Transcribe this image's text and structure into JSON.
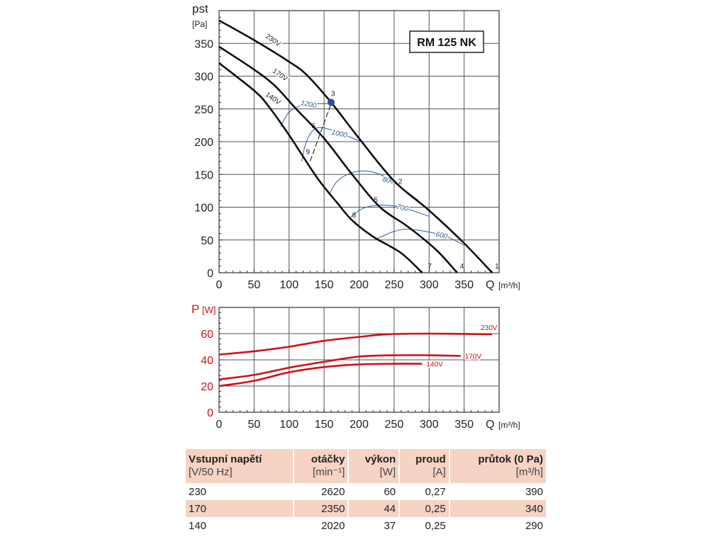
{
  "chart_data": [
    {
      "type": "line",
      "title": "RM 125 NK",
      "ylabel_main": "pst",
      "ylabel_unit": "[Pa]",
      "xlabel": "Q",
      "xlabel_unit": "[m³/h]",
      "xlim": [
        0,
        400
      ],
      "ylim": [
        0,
        400
      ],
      "xticks": [
        0,
        50,
        100,
        150,
        200,
        250,
        300,
        350
      ],
      "yticks": [
        0,
        50,
        100,
        150,
        200,
        250,
        300,
        350
      ],
      "series": [
        {
          "name": "230V",
          "points": [
            [
              0,
              385
            ],
            [
              50,
              355
            ],
            [
              100,
              322
            ],
            [
              125,
              302
            ],
            [
              160,
              260
            ],
            [
              200,
              205
            ],
            [
              250,
              140
            ],
            [
              300,
              95
            ],
            [
              350,
              45
            ],
            [
              390,
              0
            ]
          ]
        },
        {
          "name": "170V",
          "points": [
            [
              0,
              345
            ],
            [
              50,
              310
            ],
            [
              80,
              285
            ],
            [
              110,
              250
            ],
            [
              150,
              205
            ],
            [
              190,
              150
            ],
            [
              230,
              100
            ],
            [
              270,
              70
            ],
            [
              310,
              35
            ],
            [
              340,
              0
            ]
          ]
        },
        {
          "name": "140V",
          "points": [
            [
              0,
              320
            ],
            [
              50,
              278
            ],
            [
              70,
              255
            ],
            [
              100,
              210
            ],
            [
              140,
              145
            ],
            [
              170,
              105
            ],
            [
              190,
              80
            ],
            [
              220,
              55
            ],
            [
              260,
              30
            ],
            [
              290,
              0
            ]
          ]
        }
      ],
      "iso_curves": [
        {
          "label": "1200",
          "points": [
            [
              88,
              223
            ],
            [
              100,
              245
            ],
            [
              120,
              256
            ],
            [
              145,
              258
            ],
            [
              160,
              258
            ]
          ]
        },
        {
          "label": "1000",
          "points": [
            [
              118,
              170
            ],
            [
              124,
              198
            ],
            [
              135,
              218
            ],
            [
              150,
              221
            ],
            [
              180,
              210
            ],
            [
              207,
              198
            ]
          ]
        },
        {
          "label": "800",
          "points": [
            [
              157,
              120
            ],
            [
              172,
              143
            ],
            [
              200,
              155
            ],
            [
              230,
              150
            ],
            [
              260,
              130
            ],
            [
              285,
              110
            ]
          ]
        },
        {
          "label": "700",
          "points": [
            [
              188,
              85
            ],
            [
              205,
              98
            ],
            [
              228,
              103
            ],
            [
              260,
              100
            ],
            [
              300,
              86
            ]
          ]
        },
        {
          "label": "600",
          "points": [
            [
              222,
              50
            ],
            [
              250,
              63
            ],
            [
              275,
              66
            ],
            [
              320,
              57
            ],
            [
              350,
              42
            ]
          ]
        }
      ],
      "operating_points": [
        {
          "label": "1",
          "q": 390,
          "p": 0
        },
        {
          "label": "2",
          "q": 250,
          "p": 140
        },
        {
          "label": "3",
          "q": 160,
          "p": 260
        },
        {
          "label": "4",
          "q": 340,
          "p": 0
        },
        {
          "label": "5",
          "q": 225,
          "p": 103
        },
        {
          "label": "6",
          "q": 140,
          "p": 215
        },
        {
          "label": "7",
          "q": 290,
          "p": 0
        },
        {
          "label": "8",
          "q": 188,
          "p": 82
        },
        {
          "label": "9",
          "q": 122,
          "p": 190
        }
      ],
      "dashed_line": [
        [
          130,
          170
        ],
        [
          160,
          258
        ]
      ]
    },
    {
      "type": "line",
      "ylabel_main": "P",
      "ylabel_unit": "[W]",
      "xlabel": "Q",
      "xlabel_unit": "[m³/h]",
      "xlim": [
        0,
        400
      ],
      "ylim": [
        0,
        80
      ],
      "xticks": [
        0,
        50,
        100,
        150,
        200,
        250,
        300,
        350
      ],
      "yticks": [
        0,
        20,
        40,
        60
      ],
      "series": [
        {
          "name": "230V",
          "points": [
            [
              0,
              44
            ],
            [
              50,
              46.5
            ],
            [
              100,
              50
            ],
            [
              150,
              54.5
            ],
            [
              200,
              57.5
            ],
            [
              240,
              59.5
            ],
            [
              300,
              60
            ],
            [
              390,
              59.5
            ]
          ]
        },
        {
          "name": "170V",
          "points": [
            [
              0,
              25
            ],
            [
              50,
              28.5
            ],
            [
              100,
              34
            ],
            [
              150,
              38.5
            ],
            [
              200,
              42.5
            ],
            [
              250,
              43.5
            ],
            [
              300,
              43.5
            ],
            [
              345,
              43
            ]
          ]
        },
        {
          "name": "140V",
          "points": [
            [
              0,
              20
            ],
            [
              50,
              24
            ],
            [
              100,
              30.5
            ],
            [
              150,
              34.5
            ],
            [
              200,
              36.5
            ],
            [
              250,
              37
            ],
            [
              290,
              37
            ]
          ]
        }
      ]
    }
  ],
  "table": {
    "headers": [
      {
        "title": "Vstupní napětí",
        "unit": "[V/50 Hz]"
      },
      {
        "title": "otáčky",
        "unit": "[min⁻¹]"
      },
      {
        "title": "výkon",
        "unit": "[W]"
      },
      {
        "title": "proud",
        "unit": "[A]"
      },
      {
        "title": "průtok (0 Pa)",
        "unit": "[m³/h]"
      }
    ],
    "rows": [
      [
        "230",
        "2620",
        "60",
        "0,27",
        "390"
      ],
      [
        "170",
        "2350",
        "44",
        "0,25",
        "340"
      ],
      [
        "140",
        "2020",
        "37",
        "0,25",
        "290"
      ]
    ]
  },
  "colors": {
    "curve": "#111111",
    "iso": "#2b5c9a",
    "power": "#d0101a",
    "table_bg": "#f6d3c2"
  }
}
